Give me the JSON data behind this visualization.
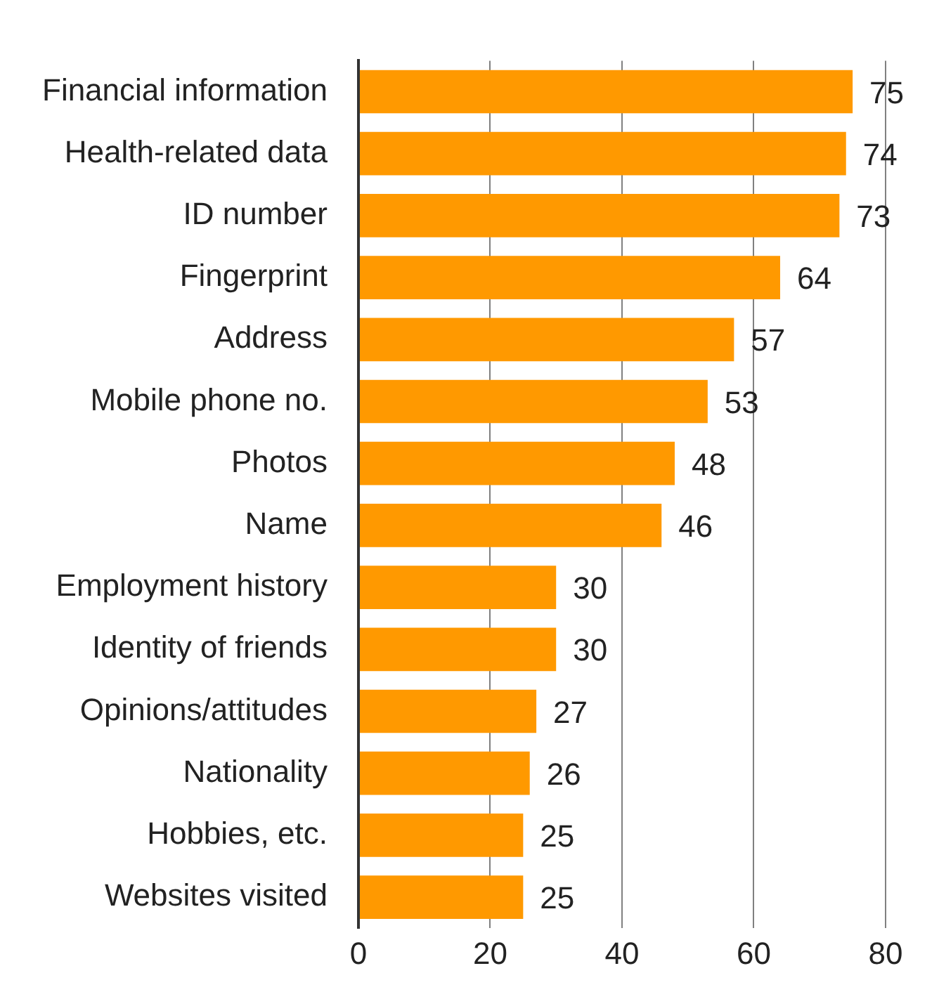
{
  "chart_data": {
    "type": "bar",
    "orientation": "horizontal",
    "categories": [
      "Financial information",
      "Health-related data",
      "ID number",
      "Fingerprint",
      "Address",
      "Mobile phone no.",
      "Photos",
      "Name",
      "Employment history",
      "Identity of friends",
      "Opinions/attitudes",
      "Nationality",
      "Hobbies, etc.",
      "Websites visited"
    ],
    "values": [
      75,
      74,
      73,
      64,
      57,
      53,
      48,
      46,
      30,
      30,
      27,
      26,
      25,
      25
    ],
    "color": "#ff9900",
    "xlim": [
      0,
      80
    ],
    "xticks": [
      0,
      20,
      40,
      60,
      80
    ],
    "grid": "x",
    "data_labels": true,
    "legend": false
  }
}
